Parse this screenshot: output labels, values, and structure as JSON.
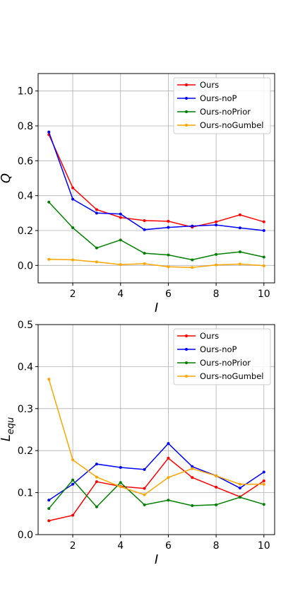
{
  "chart_data": [
    {
      "type": "line",
      "title": "",
      "xlabel": "I",
      "ylabel": "Q",
      "x": [
        1,
        2,
        3,
        4,
        5,
        6,
        7,
        8,
        9,
        10
      ],
      "xlim": [
        0.55,
        10.45
      ],
      "ylim": [
        -0.1,
        1.1
      ],
      "xticks": [
        2,
        4,
        6,
        8,
        10
      ],
      "yticks": [
        0.0,
        0.2,
        0.4,
        0.6,
        0.8,
        1.0
      ],
      "ytick_labels": [
        "0.0",
        "0.2",
        "0.4",
        "0.6",
        "0.8",
        "1.0"
      ],
      "grid": true,
      "legend_position": "upper right",
      "series": [
        {
          "name": "Ours",
          "color": "#ff0000",
          "values": [
            0.75,
            0.445,
            0.32,
            0.275,
            0.257,
            0.253,
            0.22,
            0.25,
            0.29,
            0.25
          ]
        },
        {
          "name": "Ours-noP",
          "color": "#0000ff",
          "values": [
            0.765,
            0.38,
            0.3,
            0.295,
            0.205,
            0.218,
            0.226,
            0.232,
            0.215,
            0.2
          ]
        },
        {
          "name": "Ours-noPrior",
          "color": "#008000",
          "values": [
            0.363,
            0.216,
            0.1,
            0.146,
            0.07,
            0.06,
            0.032,
            0.063,
            0.078,
            0.048
          ]
        },
        {
          "name": "Ours-noGumbel",
          "color": "#ffa500",
          "values": [
            0.035,
            0.032,
            0.02,
            0.005,
            0.01,
            -0.008,
            -0.012,
            0.003,
            0.008,
            -0.002
          ]
        }
      ]
    },
    {
      "type": "line",
      "title": "",
      "xlabel": "I",
      "ylabel": "L_equ",
      "ylabel_main": "L",
      "ylabel_sub": "equ",
      "x": [
        1,
        2,
        3,
        4,
        5,
        6,
        7,
        8,
        9,
        10
      ],
      "xlim": [
        0.55,
        10.45
      ],
      "ylim": [
        0.0,
        0.5
      ],
      "xticks": [
        2,
        4,
        6,
        8,
        10
      ],
      "yticks": [
        0.0,
        0.1,
        0.2,
        0.3,
        0.4,
        0.5
      ],
      "ytick_labels": [
        "0.0",
        "0.1",
        "0.2",
        "0.3",
        "0.4",
        "0.5"
      ],
      "grid": true,
      "legend_position": "upper right",
      "series": [
        {
          "name": "Ours",
          "color": "#ff0000",
          "values": [
            0.033,
            0.046,
            0.126,
            0.115,
            0.11,
            0.182,
            0.136,
            0.113,
            0.09,
            0.128
          ]
        },
        {
          "name": "Ours-noP",
          "color": "#0000ff",
          "values": [
            0.082,
            0.12,
            0.168,
            0.16,
            0.155,
            0.217,
            0.162,
            0.14,
            0.111,
            0.149
          ]
        },
        {
          "name": "Ours-noPrior",
          "color": "#008000",
          "values": [
            0.062,
            0.13,
            0.066,
            0.124,
            0.071,
            0.082,
            0.069,
            0.071,
            0.089,
            0.072
          ]
        },
        {
          "name": "Ours-noGumbel",
          "color": "#ffa500",
          "values": [
            0.37,
            0.178,
            0.137,
            0.114,
            0.095,
            0.136,
            0.157,
            0.14,
            0.12,
            0.12
          ]
        }
      ]
    }
  ]
}
